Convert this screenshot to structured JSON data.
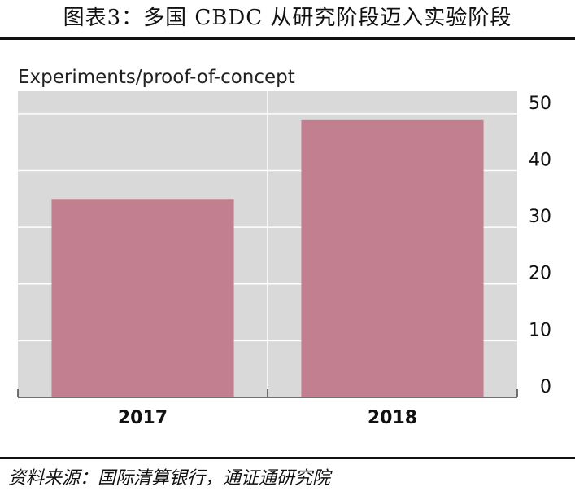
{
  "figure": {
    "title": "图表3：多国 CBDC 从研究阶段迈入实验阶段",
    "source": "资料来源：国际清算银行，通证通研究院"
  },
  "chart_data": {
    "type": "bar",
    "title": "Experiments/proof-of-concept",
    "categories": [
      "2017",
      "2018"
    ],
    "values": [
      35,
      49
    ],
    "ylim": [
      0,
      54
    ],
    "yticks": [
      0,
      10,
      20,
      30,
      40,
      50
    ],
    "y_axis_side": "right",
    "grid": true,
    "bar_color": "#c17f8f",
    "plot_background": "#d9d9d9",
    "grid_color": "#ffffff"
  }
}
